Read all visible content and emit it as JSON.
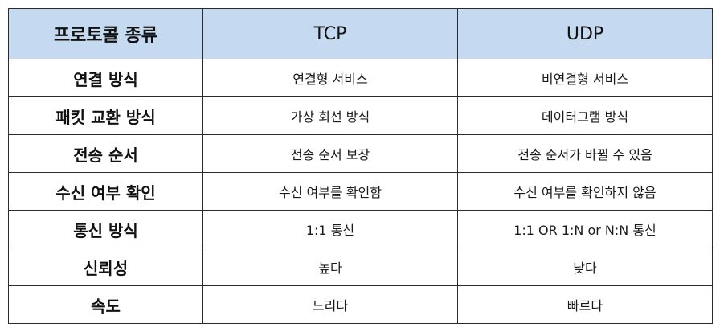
{
  "table": {
    "headers": [
      "프로토콜 종류",
      "TCP",
      "UDP"
    ],
    "rows": [
      {
        "label": "연결 방식",
        "tcp": "연결형 서비스",
        "udp": "비연결형 서비스"
      },
      {
        "label": "패킷 교환 방식",
        "tcp": "가상 회선 방식",
        "udp": "데이터그램 방식"
      },
      {
        "label": "전송 순서",
        "tcp": "전송 순서 보장",
        "udp": "전송 순서가 바뀔 수 있음"
      },
      {
        "label": "수신 여부 확인",
        "tcp": "수신 여부를 확인함",
        "udp": "수신 여부를 확인하지 않음"
      },
      {
        "label": "통신 방식",
        "tcp": "1:1 통신",
        "udp": "1:1 OR 1:N or N:N 통신"
      },
      {
        "label": "신뢰성",
        "tcp": "높다",
        "udp": "낮다"
      },
      {
        "label": "속도",
        "tcp": "느리다",
        "udp": "빠르다"
      }
    ]
  },
  "colors": {
    "header_background": "#c5d9f0",
    "border": "#2b2b2b"
  }
}
